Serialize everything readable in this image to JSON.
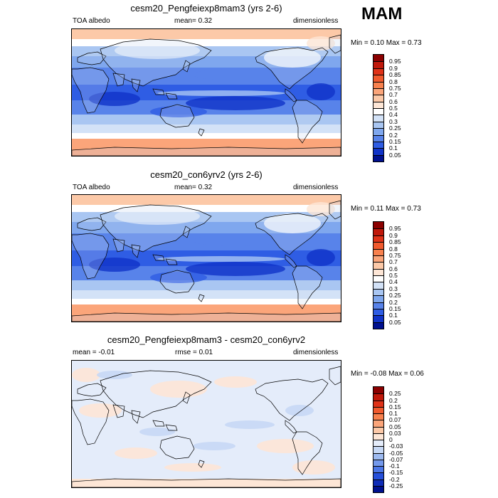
{
  "season": "MAM",
  "panels": [
    {
      "title": "cesm20_Pengfeiexp8mam3 (yrs 2-6)",
      "left_label": "TOA albedo",
      "center_label": "mean=   0.32",
      "right_label": "dimensionless",
      "minmax": "Min =   0.10 Max =   0.73",
      "type": "field",
      "colorbar": {
        "labels": [
          "0.95",
          "0.9",
          "0.85",
          "0.8",
          "0.75",
          "0.7",
          "0.6",
          "0.5",
          "0.4",
          "0.3",
          "0.25",
          "0.2",
          "0.15",
          "0.1",
          "0.05"
        ],
        "colors": [
          "#8b0000",
          "#c0180a",
          "#e03218",
          "#f15a2e",
          "#f8814e",
          "#fba57a",
          "#fcc9a8",
          "#fde6d6",
          "#ffffff",
          "#d3e2f7",
          "#a9c6f2",
          "#7fa7ee",
          "#5883ea",
          "#2f5de4",
          "#1033c8",
          "#00108f"
        ]
      }
    },
    {
      "title": "cesm20_con6yrv2 (yrs 2-6)",
      "left_label": "TOA albedo",
      "center_label": "mean=   0.32",
      "right_label": "dimensionless",
      "minmax": "Min =   0.11 Max =   0.73",
      "type": "field",
      "colorbar": {
        "labels": [
          "0.95",
          "0.9",
          "0.85",
          "0.8",
          "0.75",
          "0.7",
          "0.6",
          "0.5",
          "0.4",
          "0.3",
          "0.25",
          "0.2",
          "0.15",
          "0.1",
          "0.05"
        ],
        "colors": [
          "#8b0000",
          "#c0180a",
          "#e03218",
          "#f15a2e",
          "#f8814e",
          "#fba57a",
          "#fcc9a8",
          "#fde6d6",
          "#ffffff",
          "#d3e2f7",
          "#a9c6f2",
          "#7fa7ee",
          "#5883ea",
          "#2f5de4",
          "#1033c8",
          "#00108f"
        ]
      }
    },
    {
      "title": "cesm20_Pengfeiexp8mam3 - cesm20_con6yrv2",
      "left_label": "mean =  -0.01",
      "center_label": "rmse =   0.01",
      "right_label": "dimensionless",
      "minmax": "Min =  -0.08 Max =   0.06",
      "type": "diff",
      "colorbar": {
        "labels": [
          "0.25",
          "0.2",
          "0.15",
          "0.1",
          "0.07",
          "0.05",
          "0.03",
          "0",
          "-0.03",
          "-0.05",
          "-0.07",
          "-0.1",
          "-0.15",
          "-0.2",
          "-0.25"
        ],
        "colors": [
          "#8b0000",
          "#c0180a",
          "#e03218",
          "#f15a2e",
          "#f8814e",
          "#fba57a",
          "#fcc9a8",
          "#fde6d6",
          "#e4ecfa",
          "#c6d8f5",
          "#9dbaf0",
          "#7499ec",
          "#4c77e8",
          "#2650db",
          "#0f2cb8",
          "#00108f"
        ]
      }
    }
  ]
}
